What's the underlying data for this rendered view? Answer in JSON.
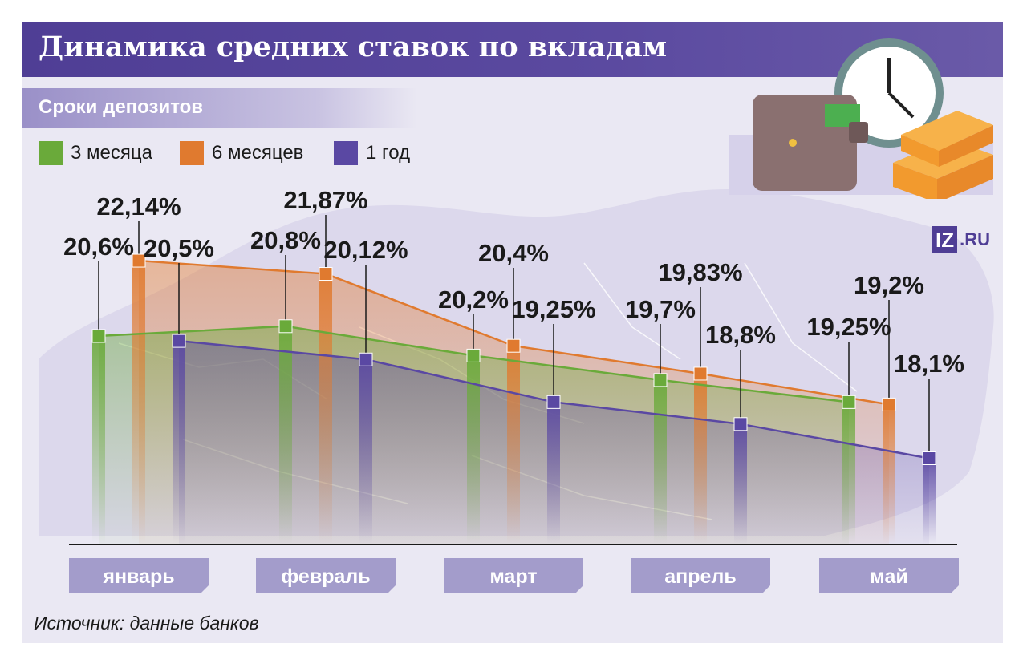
{
  "title": "Динамика средних ставок по вкладам",
  "subtitle": "Сроки депозитов",
  "source": "Источник: данные банков",
  "logo": {
    "part1": "IZ",
    "part2": ".RU"
  },
  "colors": {
    "series_3m": "#6aaa3a",
    "series_6m": "#e07a2f",
    "series_1y": "#5a48a3",
    "header": "#4f3e95",
    "month_box": "#a39ccb"
  },
  "chart_data": {
    "type": "line",
    "title": "Динамика средних ставок по вкладам",
    "categories": [
      "январь",
      "февраль",
      "март",
      "апрель",
      "май"
    ],
    "series": [
      {
        "name": "3 месяца",
        "key": "series_3m",
        "values": [
          20.6,
          20.8,
          20.2,
          19.7,
          19.25
        ],
        "labels": [
          "20,6%",
          "20,8%",
          "20,2%",
          "19,7%",
          "19,25%"
        ]
      },
      {
        "name": "6 месяцев",
        "key": "series_6m",
        "values": [
          22.14,
          21.87,
          20.4,
          19.83,
          19.2
        ],
        "labels": [
          "22,14%",
          "21,87%",
          "20,4%",
          "19,83%",
          "19,2%"
        ]
      },
      {
        "name": "1 год",
        "key": "series_1y",
        "values": [
          20.5,
          20.12,
          19.25,
          18.8,
          18.1
        ],
        "labels": [
          "20,5%",
          "20,12%",
          "19,25%",
          "18,8%",
          "18,1%"
        ]
      }
    ],
    "xlabel": "",
    "ylabel": "",
    "grid": false,
    "legend": "top-left"
  }
}
